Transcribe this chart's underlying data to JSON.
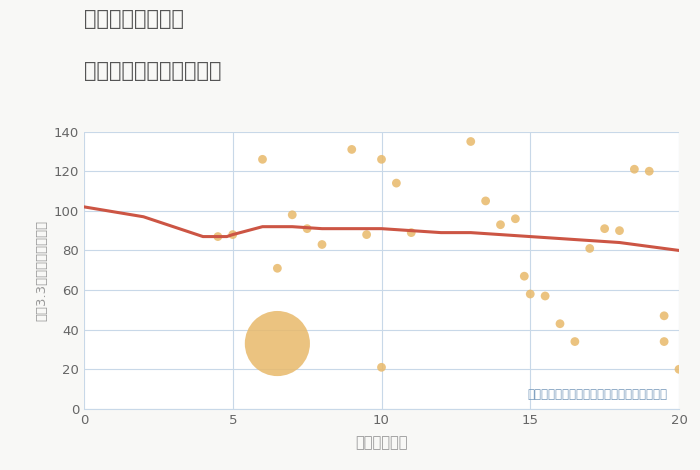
{
  "title_line1": "千葉県柏市箕輪の",
  "title_line2": "駅距離別中古戸建て価格",
  "xlabel": "駅距離（分）",
  "ylabel": "坪（3.3㎡）単価（万円）",
  "annotation": "円の大きさは、取引のあった物件面積を示す",
  "xlim": [
    0,
    20
  ],
  "ylim": [
    0,
    140
  ],
  "yticks": [
    0,
    20,
    40,
    60,
    80,
    100,
    120,
    140
  ],
  "xticks": [
    0,
    5,
    10,
    15,
    20
  ],
  "scatter_x": [
    4.5,
    5.0,
    6.0,
    6.5,
    7.0,
    7.5,
    8.0,
    9.0,
    9.5,
    10.0,
    10.5,
    11.0,
    13.0,
    13.5,
    14.0,
    14.5,
    14.8,
    15.0,
    15.5,
    16.0,
    16.5,
    17.0,
    17.5,
    18.0,
    18.5,
    19.0,
    19.5,
    20.0,
    6.5,
    10.0,
    19.5
  ],
  "scatter_y": [
    87,
    88,
    126,
    71,
    98,
    91,
    83,
    131,
    88,
    126,
    114,
    89,
    135,
    105,
    93,
    96,
    67,
    58,
    57,
    43,
    34,
    81,
    91,
    90,
    121,
    120,
    34,
    20,
    33,
    21,
    47
  ],
  "scatter_size": [
    40,
    40,
    40,
    40,
    40,
    40,
    40,
    40,
    40,
    40,
    40,
    40,
    40,
    40,
    40,
    40,
    40,
    40,
    40,
    40,
    40,
    40,
    40,
    40,
    40,
    40,
    40,
    40,
    2200,
    40,
    40
  ],
  "scatter_color": "#E8B96A",
  "trend_x": [
    0,
    2,
    4,
    4.8,
    5,
    6,
    7,
    8,
    9,
    10,
    11,
    12,
    13,
    14,
    15,
    16,
    17,
    18,
    19,
    20
  ],
  "trend_y": [
    102,
    97,
    87,
    87,
    88,
    92,
    92,
    91,
    91,
    91,
    90,
    89,
    89,
    88,
    87,
    86,
    85,
    84,
    82,
    80
  ],
  "trend_color": "#CC5544",
  "grid_color": "#C8D8E8",
  "bg_color": "#F8F8F6",
  "plot_bg_color": "#FFFFFF",
  "title_color": "#555555",
  "axis_color": "#999999",
  "tick_color": "#666666",
  "annotation_color": "#7799BB"
}
